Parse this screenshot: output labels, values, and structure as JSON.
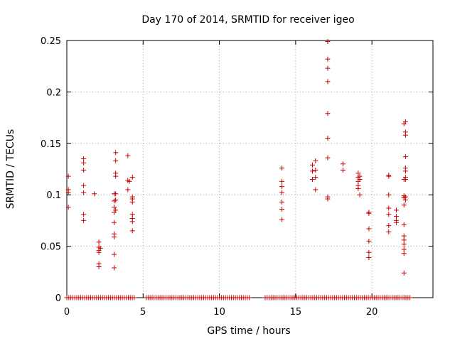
{
  "chart_data": {
    "type": "scatter",
    "title": "Day 170 of 2014, SRMTID for receiver igeo",
    "xlabel": "GPS time / hours",
    "ylabel": "SRMTID / TECUs",
    "xlim": [
      0,
      24
    ],
    "ylim": [
      0,
      0.25
    ],
    "xticks": [
      0,
      5,
      10,
      15,
      20
    ],
    "yticks": [
      0,
      0.05,
      0.1,
      0.15,
      0.2,
      0.25
    ],
    "xtick_labels": [
      "0",
      "5",
      "10",
      "15",
      "20"
    ],
    "ytick_labels": [
      "0",
      "0.05",
      "0.1",
      "0.15",
      "0.2",
      "0.25"
    ],
    "grid": true,
    "marker": "+",
    "color": "#cc0000",
    "series": [
      {
        "name": "SRMTID",
        "points": [
          [
            0.1,
            0.118
          ],
          [
            0.1,
            0.105
          ],
          [
            0.1,
            0.102
          ],
          [
            0.1,
            0.088
          ],
          [
            1.1,
            0.135
          ],
          [
            1.1,
            0.131
          ],
          [
            1.1,
            0.124
          ],
          [
            1.1,
            0.109
          ],
          [
            1.1,
            0.102
          ],
          [
            1.1,
            0.081
          ],
          [
            1.1,
            0.075
          ],
          [
            1.8,
            0.101
          ],
          [
            2.1,
            0.054
          ],
          [
            2.1,
            0.049
          ],
          [
            2.1,
            0.046
          ],
          [
            2.1,
            0.044
          ],
          [
            2.1,
            0.033
          ],
          [
            2.1,
            0.03
          ],
          [
            2.2,
            0.048
          ],
          [
            3.1,
            0.101
          ],
          [
            3.1,
            0.094
          ],
          [
            3.1,
            0.088
          ],
          [
            3.1,
            0.083
          ],
          [
            3.1,
            0.073
          ],
          [
            3.1,
            0.062
          ],
          [
            3.1,
            0.059
          ],
          [
            3.1,
            0.042
          ],
          [
            3.1,
            0.029
          ],
          [
            3.2,
            0.141
          ],
          [
            3.2,
            0.133
          ],
          [
            3.2,
            0.121
          ],
          [
            3.2,
            0.118
          ],
          [
            3.2,
            0.101
          ],
          [
            3.2,
            0.095
          ],
          [
            3.2,
            0.085
          ],
          [
            4.0,
            0.138
          ],
          [
            4.0,
            0.114
          ],
          [
            4.0,
            0.105
          ],
          [
            4.1,
            0.113
          ],
          [
            4.3,
            0.117
          ],
          [
            4.3,
            0.098
          ],
          [
            4.3,
            0.093
          ],
          [
            4.3,
            0.081
          ],
          [
            4.3,
            0.077
          ],
          [
            4.3,
            0.074
          ],
          [
            4.3,
            0.065
          ],
          [
            4.3,
            0.096
          ],
          [
            14.1,
            0.126
          ],
          [
            14.1,
            0.113
          ],
          [
            14.1,
            0.108
          ],
          [
            14.1,
            0.102
          ],
          [
            14.1,
            0.093
          ],
          [
            14.1,
            0.086
          ],
          [
            14.1,
            0.076
          ],
          [
            16.1,
            0.129
          ],
          [
            16.1,
            0.123
          ],
          [
            16.1,
            0.115
          ],
          [
            16.3,
            0.133
          ],
          [
            16.3,
            0.124
          ],
          [
            16.3,
            0.117
          ],
          [
            16.3,
            0.105
          ],
          [
            17.1,
            0.249
          ],
          [
            17.1,
            0.232
          ],
          [
            17.1,
            0.223
          ],
          [
            17.1,
            0.21
          ],
          [
            17.1,
            0.179
          ],
          [
            17.1,
            0.155
          ],
          [
            17.1,
            0.136
          ],
          [
            17.1,
            0.098
          ],
          [
            17.1,
            0.096
          ],
          [
            18.1,
            0.13
          ],
          [
            18.1,
            0.124
          ],
          [
            19.1,
            0.121
          ],
          [
            19.1,
            0.117
          ],
          [
            19.1,
            0.113
          ],
          [
            19.1,
            0.109
          ],
          [
            19.1,
            0.106
          ],
          [
            19.2,
            0.118
          ],
          [
            19.2,
            0.115
          ],
          [
            19.2,
            0.1
          ],
          [
            19.8,
            0.083
          ],
          [
            19.8,
            0.082
          ],
          [
            19.8,
            0.067
          ],
          [
            19.8,
            0.055
          ],
          [
            19.8,
            0.044
          ],
          [
            19.8,
            0.039
          ],
          [
            21.1,
            0.119
          ],
          [
            21.1,
            0.118
          ],
          [
            21.1,
            0.1
          ],
          [
            21.1,
            0.087
          ],
          [
            21.1,
            0.081
          ],
          [
            21.1,
            0.07
          ],
          [
            21.1,
            0.064
          ],
          [
            21.6,
            0.085
          ],
          [
            21.6,
            0.079
          ],
          [
            21.6,
            0.075
          ],
          [
            21.6,
            0.073
          ],
          [
            22.1,
            0.169
          ],
          [
            22.1,
            0.115
          ],
          [
            22.1,
            0.099
          ],
          [
            22.1,
            0.097
          ],
          [
            22.1,
            0.09
          ],
          [
            22.1,
            0.071
          ],
          [
            22.1,
            0.06
          ],
          [
            22.1,
            0.056
          ],
          [
            22.1,
            0.052
          ],
          [
            22.1,
            0.047
          ],
          [
            22.1,
            0.043
          ],
          [
            22.1,
            0.024
          ],
          [
            22.2,
            0.171
          ],
          [
            22.2,
            0.161
          ],
          [
            22.2,
            0.158
          ],
          [
            22.2,
            0.137
          ],
          [
            22.2,
            0.126
          ],
          [
            22.2,
            0.123
          ],
          [
            22.2,
            0.117
          ],
          [
            22.2,
            0.115
          ],
          [
            22.2,
            0.098
          ],
          [
            22.2,
            0.095
          ]
        ]
      }
    ],
    "zero_segments": [
      [
        0.0,
        4.5
      ],
      [
        5.2,
        12.0
      ],
      [
        13.0,
        22.5
      ]
    ],
    "zero_step": 0.13
  }
}
